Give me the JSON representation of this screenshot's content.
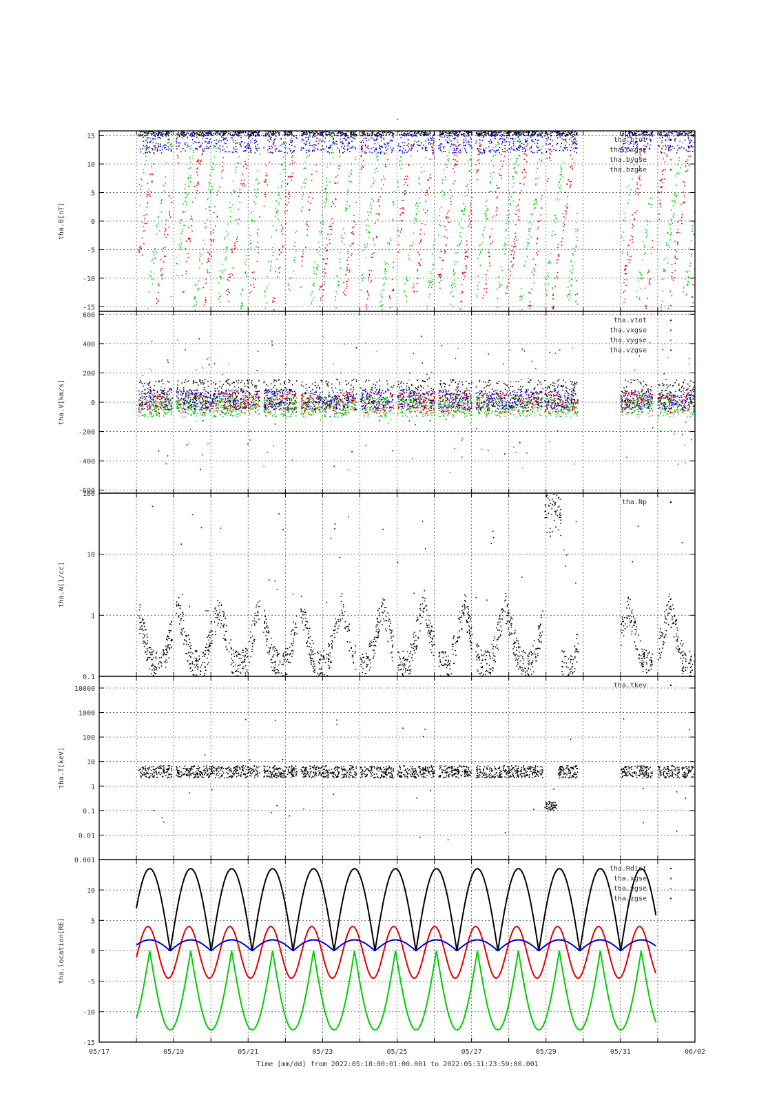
{
  "figure": {
    "title": "-",
    "footer": "Time [mm/dd]  from 2022:05:18:00:01:00.001  to  2022:05:31:23:59:00.001"
  },
  "colors": {
    "black": "#000000",
    "red": "#dd0000",
    "green": "#00cc00",
    "blue": "#0000cc"
  },
  "x_axis": {
    "range": [
      "05/17",
      "06/02"
    ],
    "ticks": [
      "05/17",
      "05/19",
      "05/21",
      "05/23",
      "05/25",
      "05/27",
      "05/29",
      "05/31",
      "06/02"
    ],
    "tick_days": [
      17,
      19,
      21,
      23,
      25,
      27,
      29,
      31,
      33
    ],
    "minor_grid_days": [
      18,
      20,
      22,
      24,
      26,
      28,
      30,
      32
    ]
  },
  "chart_data": [
    {
      "type": "scatter",
      "ylabel": "tha.B[nT]",
      "ylim": [
        -15.8,
        15.8
      ],
      "scale": "linear",
      "yticks": [
        15,
        10,
        5,
        0,
        -5,
        -10,
        -15
      ],
      "grid": true,
      "legend": "top-right",
      "series": [
        {
          "name": "tha.btot",
          "color": "#000000"
        },
        {
          "name": "tha.bxgse",
          "color": "#dd0000"
        },
        {
          "name": "tha.bygse",
          "color": "#00cc00"
        },
        {
          "name": "tha.bzgse",
          "color": "#0000cc"
        }
      ]
    },
    {
      "type": "scatter",
      "ylabel": "tha.V[km/s]",
      "ylim": [
        -620,
        620
      ],
      "scale": "linear",
      "yticks": [
        600,
        400,
        200,
        0,
        -200,
        -400,
        -600
      ],
      "grid": true,
      "legend": "top-right",
      "series": [
        {
          "name": "tha.vtot",
          "color": "#000000"
        },
        {
          "name": "tha.vxgse",
          "color": "#dd0000"
        },
        {
          "name": "tha.vygse",
          "color": "#00cc00"
        },
        {
          "name": "tha.vzgse",
          "color": "#0000cc"
        }
      ]
    },
    {
      "type": "scatter",
      "ylabel": "tha.N[1/cc]",
      "ylim": [
        0.1,
        100
      ],
      "scale": "log",
      "yticks": [
        100,
        10,
        1,
        0.1
      ],
      "ytick_labels": [
        "100",
        "10",
        "1",
        "0.1"
      ],
      "grid": true,
      "legend": "top-right",
      "series": [
        {
          "name": "tha.Np",
          "color": "#000000"
        }
      ]
    },
    {
      "type": "scatter",
      "ylabel": "tha.T[keV]",
      "ylim": [
        0.001,
        30000
      ],
      "scale": "log",
      "yticks": [
        10000,
        1000,
        100,
        10,
        1,
        0.1,
        0.01,
        0.001
      ],
      "ytick_labels": [
        "10000",
        "1000",
        "100",
        "10",
        "1",
        "0.1",
        "0.01",
        "0.001"
      ],
      "grid": true,
      "legend": "top-right",
      "series": [
        {
          "name": "tha.tkev",
          "color": "#000000"
        }
      ]
    },
    {
      "type": "line",
      "ylabel": "tha.location[RE]",
      "ylim": [
        -15,
        15
      ],
      "scale": "linear",
      "yticks": [
        10,
        5,
        0,
        -5,
        -10,
        -15
      ],
      "grid": true,
      "legend": "top-right",
      "orbit_period_days": 1.1,
      "series": [
        {
          "name": "tha.Rdist",
          "color": "#000000",
          "max": 13.5,
          "min": 0
        },
        {
          "name": "tha.xgse",
          "color": "#dd0000",
          "max": 4,
          "min": -4.5
        },
        {
          "name": "tha.ygse",
          "color": "#00cc00",
          "max": 0,
          "min": -13
        },
        {
          "name": "tha.zgse",
          "color": "#0000cc",
          "max": 1.8,
          "min": 0
        }
      ]
    }
  ]
}
